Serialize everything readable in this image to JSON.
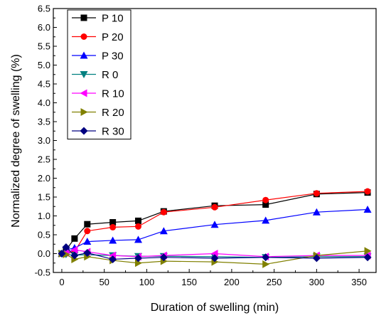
{
  "chart_data": {
    "type": "line",
    "title": "",
    "xlabel": "Duration of swelling (min)",
    "ylabel": "Normalized degree of swelling (%)",
    "xlim": [
      -10,
      370
    ],
    "ylim": [
      -0.5,
      6.5
    ],
    "xticks": [
      0,
      50,
      100,
      150,
      200,
      250,
      300,
      350
    ],
    "yticks": [
      -0.5,
      0.0,
      0.5,
      1.0,
      1.5,
      2.0,
      2.5,
      3.0,
      3.5,
      4.0,
      4.5,
      5.0,
      5.5,
      6.0,
      6.5
    ],
    "grid": false,
    "legend_position": "top-left",
    "series": [
      {
        "name": "P 10",
        "color": "#000000",
        "marker": "square",
        "x": [
          0,
          5,
          15,
          30,
          60,
          90,
          120,
          180,
          240,
          300,
          360
        ],
        "y": [
          0.0,
          0.1,
          0.4,
          0.78,
          0.83,
          0.87,
          1.12,
          1.27,
          1.3,
          1.58,
          1.62
        ]
      },
      {
        "name": "P 20",
        "color": "#ff0000",
        "marker": "circle",
        "x": [
          0,
          5,
          15,
          30,
          60,
          90,
          120,
          180,
          240,
          300,
          360
        ],
        "y": [
          0.0,
          0.0,
          0.05,
          0.6,
          0.7,
          0.72,
          1.1,
          1.23,
          1.42,
          1.6,
          1.65
        ]
      },
      {
        "name": "P 30",
        "color": "#0000ff",
        "marker": "triangle-up",
        "x": [
          0,
          5,
          15,
          30,
          60,
          90,
          120,
          180,
          240,
          300,
          360
        ],
        "y": [
          0.0,
          0.1,
          0.15,
          0.32,
          0.35,
          0.37,
          0.6,
          0.77,
          0.88,
          1.1,
          1.17
        ]
      },
      {
        "name": "R 0",
        "color": "#008080",
        "marker": "triangle-down",
        "x": [
          0,
          5,
          15,
          30,
          60,
          90,
          120,
          180,
          240,
          300,
          360
        ],
        "y": [
          0.0,
          -0.02,
          -0.04,
          -0.03,
          -0.05,
          -0.07,
          -0.07,
          -0.08,
          -0.1,
          -0.08,
          -0.08
        ]
      },
      {
        "name": "R 10",
        "color": "#ff00ff",
        "marker": "triangle-left",
        "x": [
          0,
          5,
          15,
          30,
          60,
          90,
          120,
          180,
          240,
          300,
          360
        ],
        "y": [
          0.0,
          0.02,
          0.1,
          0.05,
          -0.05,
          -0.08,
          -0.05,
          0.0,
          -0.08,
          -0.05,
          -0.05
        ]
      },
      {
        "name": "R 20",
        "color": "#808000",
        "marker": "triangle-right",
        "x": [
          0,
          5,
          15,
          30,
          60,
          90,
          120,
          180,
          240,
          300,
          360
        ],
        "y": [
          0.0,
          -0.02,
          -0.15,
          -0.08,
          -0.18,
          -0.25,
          -0.2,
          -0.22,
          -0.28,
          -0.05,
          0.07
        ]
      },
      {
        "name": "R 30",
        "color": "#000080",
        "marker": "diamond",
        "x": [
          0,
          5,
          15,
          30,
          60,
          90,
          120,
          180,
          240,
          300,
          360
        ],
        "y": [
          0.0,
          0.17,
          -0.05,
          0.02,
          -0.15,
          -0.12,
          -0.1,
          -0.12,
          -0.1,
          -0.12,
          -0.1
        ]
      }
    ]
  }
}
